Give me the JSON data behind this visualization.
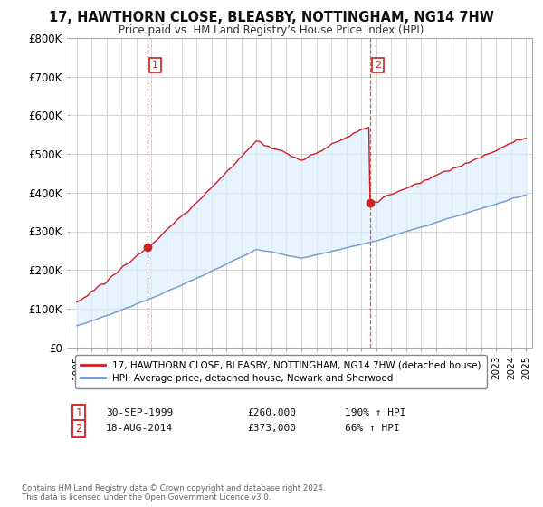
{
  "title_line1": "17, HAWTHORN CLOSE, BLEASBY, NOTTINGHAM, NG14 7HW",
  "title_line2": "Price paid vs. HM Land Registry’s House Price Index (HPI)",
  "hpi_label": "HPI: Average price, detached house, Newark and Sherwood",
  "property_label": "17, HAWTHORN CLOSE, BLEASBY, NOTTINGHAM, NG14 7HW (detached house)",
  "sale1_date": "30-SEP-1999",
  "sale1_price": 260000,
  "sale1_pct": "190%",
  "sale2_date": "18-AUG-2014",
  "sale2_price": 373000,
  "sale2_pct": "66%",
  "footer": "Contains HM Land Registry data © Crown copyright and database right 2024.\nThis data is licensed under the Open Government Licence v3.0.",
  "property_color": "#cc2222",
  "hpi_color": "#7799cc",
  "vline_color": "#dd4444",
  "fill_color": "#ddeeff",
  "background_color": "#ffffff",
  "grid_color": "#cccccc",
  "ylim": [
    0,
    800000
  ],
  "yticks": [
    0,
    100000,
    200000,
    300000,
    400000,
    500000,
    600000,
    700000,
    800000
  ],
  "x_start_year": 1995,
  "x_end_year": 2025,
  "sale1_year": 1999.75,
  "sale2_year": 2014.58
}
